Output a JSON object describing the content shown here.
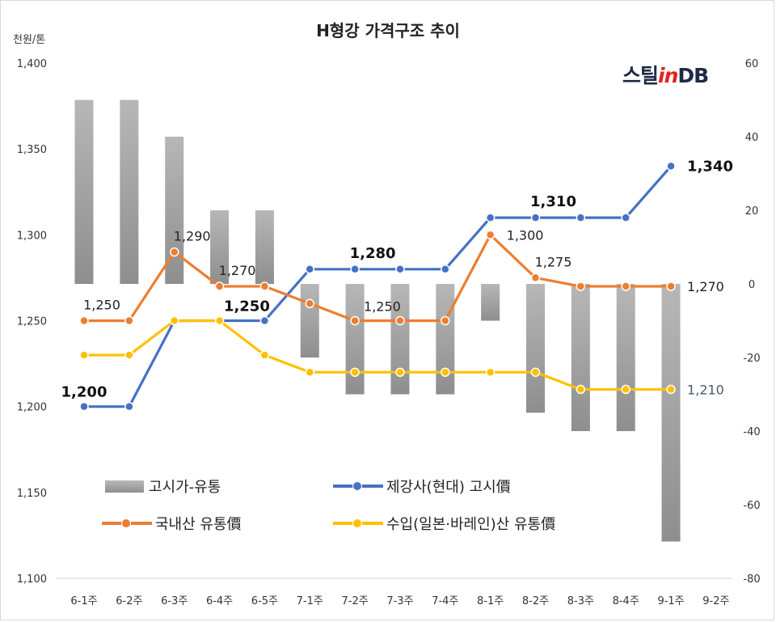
{
  "title": "H형강 가격구조 추이",
  "y_unit_label": "천원/톤",
  "logo": {
    "part1": "스틸",
    "part2": "in",
    "part3": "DB"
  },
  "colors": {
    "bar": "#a6a6a6",
    "blue": "#4472c4",
    "orange": "#ed7d31",
    "yellow": "#ffc000",
    "slate": "#4a5a6a"
  },
  "chart_data": {
    "type": "bar+line",
    "title": "H형강 가격구조 추이",
    "categories": [
      "6-1주",
      "6-2주",
      "6-3주",
      "6-4주",
      "6-5주",
      "7-1주",
      "7-2주",
      "7-3주",
      "7-4주",
      "8-1주",
      "8-2주",
      "8-3주",
      "8-4주",
      "9-1주",
      "9-2주"
    ],
    "y_left": {
      "label": "천원/톤",
      "range": [
        1100,
        1400
      ],
      "ticks": [
        "1,100",
        "1,150",
        "1,200",
        "1,250",
        "1,300",
        "1,350",
        "1,400"
      ]
    },
    "y_right": {
      "range": [
        -80,
        60
      ],
      "ticks": [
        "-80",
        "-60",
        "-40",
        "-20",
        "0",
        "20",
        "40",
        "60"
      ]
    },
    "series": [
      {
        "name": "고시가-유통",
        "type": "bar",
        "axis": "right",
        "values": [
          50,
          50,
          40,
          20,
          20,
          -20,
          -30,
          -30,
          -30,
          -10,
          -35,
          -40,
          -40,
          -70,
          null
        ]
      },
      {
        "name": "제강사(현대) 고시價",
        "type": "line",
        "axis": "left",
        "values": [
          1200,
          1200,
          1250,
          1250,
          1250,
          1280,
          1280,
          1280,
          1280,
          1310,
          1310,
          1310,
          1310,
          1340,
          null
        ]
      },
      {
        "name": "국내산 유통價",
        "type": "line",
        "axis": "left",
        "values": [
          1250,
          1250,
          1290,
          1270,
          1270,
          1260,
          1250,
          1250,
          1250,
          1300,
          1275,
          1270,
          1270,
          1270,
          null
        ]
      },
      {
        "name": "수입(일본·바레인)산 유통價",
        "type": "line",
        "axis": "left",
        "values": [
          1230,
          1230,
          1250,
          1250,
          1230,
          1220,
          1220,
          1220,
          1220,
          1220,
          1220,
          1210,
          1210,
          1210,
          null
        ]
      }
    ],
    "data_labels": [
      {
        "series": 1,
        "index": 0,
        "text": "1,200",
        "style": "bold",
        "pos": "above"
      },
      {
        "series": 1,
        "index": 4,
        "text": "1,250",
        "style": "bold",
        "pos": "above-left"
      },
      {
        "series": 1,
        "index": 6,
        "text": "1,280",
        "style": "bold",
        "pos": "above-right"
      },
      {
        "series": 1,
        "index": 10,
        "text": "1,310",
        "style": "bold",
        "pos": "above-right"
      },
      {
        "series": 1,
        "index": 13,
        "text": "1,340",
        "style": "bold",
        "pos": "right"
      },
      {
        "series": 2,
        "index": 0,
        "text": "1,250",
        "style": "normal",
        "pos": "above-right"
      },
      {
        "series": 2,
        "index": 2,
        "text": "1,290",
        "style": "normal",
        "pos": "above-right"
      },
      {
        "series": 2,
        "index": 3,
        "text": "1,270",
        "style": "normal",
        "pos": "above-right"
      },
      {
        "series": 2,
        "index": 7,
        "text": "1,250",
        "style": "normal",
        "pos": "above-left"
      },
      {
        "series": 2,
        "index": 9,
        "text": "1,300",
        "style": "normal",
        "pos": "right"
      },
      {
        "series": 2,
        "index": 10,
        "text": "1,275",
        "style": "normal",
        "pos": "above-right"
      },
      {
        "series": 2,
        "index": 13,
        "text": "1,270",
        "style": "normal",
        "pos": "right"
      },
      {
        "series": 3,
        "index": 13,
        "text": "1,210",
        "style": "slate",
        "pos": "right"
      }
    ],
    "legend": {
      "position": "bottom-left-overlay"
    },
    "grid": false
  }
}
